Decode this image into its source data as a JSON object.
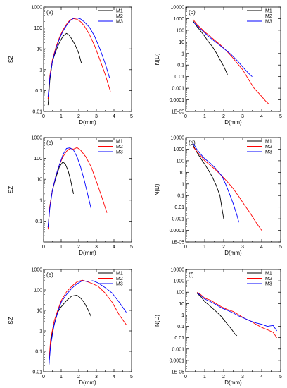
{
  "chart_data": [
    {
      "type": "line",
      "panel": "(a)",
      "xlabel": "D(mm)",
      "ylabel": "SZ",
      "yscale": "log",
      "xlim": [
        0,
        5
      ],
      "ylim_exp": [
        -2,
        3
      ],
      "xticks": [
        "0",
        "1",
        "2",
        "3",
        "4",
        "5"
      ],
      "yticks": [
        "0.01",
        "0.1",
        "1",
        "10",
        "100",
        "1000"
      ],
      "legend_position": "top-right",
      "series": [
        {
          "name": "M1",
          "color": "#000000",
          "x": [
            0.25,
            0.35,
            0.5,
            0.7,
            0.9,
            1.1,
            1.3,
            1.45,
            1.6,
            1.8,
            2.0,
            2.15
          ],
          "y": [
            0.02,
            0.3,
            2.5,
            8,
            20,
            40,
            55,
            45,
            30,
            15,
            6,
            2
          ]
        },
        {
          "name": "M2",
          "color": "#ff0000",
          "x": [
            0.25,
            0.35,
            0.5,
            0.7,
            0.9,
            1.1,
            1.3,
            1.5,
            1.7,
            1.9,
            2.1,
            2.3,
            2.6,
            2.9,
            3.2,
            3.5,
            3.8
          ],
          "y": [
            0.04,
            0.5,
            3,
            12,
            35,
            80,
            150,
            240,
            280,
            260,
            200,
            130,
            50,
            14,
            3,
            0.6,
            0.09
          ]
        },
        {
          "name": "M3",
          "color": "#0000ff",
          "x": [
            0.25,
            0.35,
            0.5,
            0.7,
            0.9,
            1.1,
            1.3,
            1.5,
            1.7,
            1.9,
            2.1,
            2.3,
            2.6,
            2.9,
            3.2,
            3.5,
            3.75
          ],
          "y": [
            0.05,
            0.4,
            2.5,
            10,
            30,
            70,
            130,
            220,
            290,
            300,
            270,
            200,
            110,
            40,
            10,
            2,
            0.4
          ]
        }
      ]
    },
    {
      "type": "line",
      "panel": "(b)",
      "xlabel": "D(mm)",
      "ylabel": "N(D)",
      "yscale": "log",
      "xlim": [
        0,
        5
      ],
      "ylim_exp": [
        -5,
        4
      ],
      "xticks": [
        "0",
        "1",
        "2",
        "3",
        "4",
        "5"
      ],
      "yticks": [
        "1E-05",
        "0.0001",
        "0.001",
        "0.01",
        "0.1",
        "1",
        "10",
        "100",
        "1000",
        "10000"
      ],
      "legend_position": "top-right",
      "series": [
        {
          "name": "M1",
          "color": "#000000",
          "x": [
            0.4,
            0.6,
            0.8,
            1.0,
            1.2,
            1.4,
            1.6,
            1.8,
            2.0,
            2.2
          ],
          "y": [
            600,
            200,
            80,
            30,
            10,
            4,
            1.2,
            0.3,
            0.08,
            0.015
          ]
        },
        {
          "name": "M2",
          "color": "#ff0000",
          "x": [
            0.4,
            0.6,
            0.8,
            1.0,
            1.2,
            1.5,
            1.8,
            2.1,
            2.4,
            2.7,
            3.0,
            3.3,
            3.6,
            3.9,
            4.2,
            4.4
          ],
          "y": [
            800,
            300,
            150,
            70,
            40,
            15,
            6,
            2,
            0.6,
            0.15,
            0.04,
            0.006,
            0.001,
            0.0003,
            8e-05,
            4e-05
          ]
        },
        {
          "name": "M3",
          "color": "#0000ff",
          "x": [
            0.4,
            0.6,
            0.8,
            1.0,
            1.2,
            1.5,
            1.8,
            2.1,
            2.4,
            2.7,
            3.0,
            3.3,
            3.5
          ],
          "y": [
            500,
            250,
            120,
            60,
            30,
            12,
            5,
            2,
            0.8,
            0.25,
            0.07,
            0.02,
            0.01
          ]
        }
      ]
    },
    {
      "type": "line",
      "panel": "(c)",
      "xlabel": "D(mm)",
      "ylabel": "SZ",
      "yscale": "log",
      "xlim": [
        0,
        5
      ],
      "ylim_exp": [
        -2,
        3
      ],
      "xticks": [
        "0",
        "1",
        "2",
        "3",
        "4",
        "5"
      ],
      "yticks": [
        "0.1",
        "1",
        "10",
        "100",
        "1000"
      ],
      "legend_position": "top-right",
      "series": [
        {
          "name": "M1",
          "color": "#000000",
          "x": [
            0.25,
            0.35,
            0.5,
            0.7,
            0.9,
            1.1,
            1.25,
            1.4,
            1.55,
            1.7
          ],
          "y": [
            0.05,
            0.5,
            3,
            12,
            40,
            70,
            50,
            25,
            8,
            2
          ]
        },
        {
          "name": "M2",
          "color": "#ff0000",
          "x": [
            0.25,
            0.35,
            0.5,
            0.7,
            0.9,
            1.1,
            1.3,
            1.5,
            1.7,
            1.9,
            2.1,
            2.4,
            2.7,
            3.0,
            3.3,
            3.6
          ],
          "y": [
            0.04,
            0.5,
            3,
            15,
            50,
            120,
            220,
            300,
            280,
            330,
            250,
            120,
            40,
            8,
            1.5,
            0.25
          ]
        },
        {
          "name": "M3",
          "color": "#0000ff",
          "x": [
            0.25,
            0.35,
            0.5,
            0.7,
            0.9,
            1.1,
            1.3,
            1.5,
            1.7,
            1.9,
            2.1,
            2.3,
            2.5,
            2.7
          ],
          "y": [
            0.05,
            0.4,
            3,
            15,
            50,
            150,
            300,
            320,
            250,
            120,
            40,
            10,
            2,
            0.4
          ]
        }
      ]
    },
    {
      "type": "line",
      "panel": "(d)",
      "xlabel": "D(mm)",
      "ylabel": "N(D)",
      "yscale": "log",
      "xlim": [
        0,
        5
      ],
      "ylim_exp": [
        -5,
        4
      ],
      "xticks": [
        "0",
        "1",
        "2",
        "3",
        "4",
        "5"
      ],
      "yticks": [
        "1E-05",
        "0.0001",
        "0.001",
        "0.01",
        "0.1",
        "1",
        "10",
        "100",
        "1000",
        "10000"
      ],
      "legend_position": "top-right",
      "series": [
        {
          "name": "M1",
          "color": "#000000",
          "x": [
            0.4,
            0.6,
            0.8,
            1.0,
            1.2,
            1.4,
            1.6,
            1.8,
            1.9,
            2.0
          ],
          "y": [
            2000,
            500,
            150,
            50,
            15,
            4,
            0.8,
            0.1,
            0.01,
            0.001
          ]
        },
        {
          "name": "M2",
          "color": "#ff0000",
          "x": [
            0.4,
            0.6,
            0.8,
            1.0,
            1.3,
            1.6,
            1.9,
            2.2,
            2.5,
            2.8,
            3.1,
            3.4,
            3.7,
            4.0
          ],
          "y": [
            1500,
            600,
            250,
            100,
            40,
            15,
            5,
            1.5,
            0.4,
            0.08,
            0.015,
            0.003,
            0.0005,
            0.0001
          ]
        },
        {
          "name": "M3",
          "color": "#0000ff",
          "x": [
            0.4,
            0.6,
            0.8,
            1.0,
            1.3,
            1.6,
            1.9,
            2.1,
            2.3,
            2.5,
            2.7,
            2.8
          ],
          "y": [
            3000,
            900,
            350,
            150,
            60,
            20,
            5,
            1,
            0.15,
            0.02,
            0.002,
            0.0005
          ]
        }
      ]
    },
    {
      "type": "line",
      "panel": "(e)",
      "xlabel": "D(mm)",
      "ylabel": "SZ",
      "yscale": "log",
      "xlim": [
        0,
        5
      ],
      "ylim_exp": [
        -2,
        3
      ],
      "xticks": [
        "0",
        "1",
        "2",
        "3",
        "4",
        "5"
      ],
      "yticks": [
        "0.01",
        "0.1",
        "1",
        "10",
        "100",
        "1000"
      ],
      "legend_position": "top-right",
      "series": [
        {
          "name": "M1",
          "color": "#000000",
          "x": [
            0.3,
            0.4,
            0.6,
            0.8,
            1.0,
            1.3,
            1.6,
            1.9,
            2.1,
            2.3,
            2.5,
            2.7
          ],
          "y": [
            0.02,
            0.3,
            2,
            8,
            15,
            30,
            50,
            55,
            40,
            25,
            12,
            5
          ]
        },
        {
          "name": "M2",
          "color": "#ff0000",
          "x": [
            0.3,
            0.4,
            0.6,
            0.8,
            1.0,
            1.3,
            1.6,
            1.9,
            2.2,
            2.5,
            2.8,
            3.1,
            3.5,
            3.9,
            4.3,
            4.7
          ],
          "y": [
            0.03,
            0.4,
            3,
            10,
            30,
            80,
            150,
            250,
            300,
            250,
            200,
            150,
            70,
            25,
            6,
            2
          ]
        },
        {
          "name": "M3",
          "color": "#0000ff",
          "x": [
            0.3,
            0.4,
            0.6,
            0.8,
            1.0,
            1.3,
            1.6,
            1.9,
            2.2,
            2.5,
            2.8,
            3.1,
            3.5,
            3.9,
            4.3,
            4.7
          ],
          "y": [
            0.02,
            0.2,
            2,
            8,
            25,
            60,
            120,
            200,
            280,
            260,
            280,
            220,
            130,
            70,
            25,
            8
          ]
        }
      ]
    },
    {
      "type": "line",
      "panel": "(f)",
      "xlabel": "D(mm)",
      "ylabel": "N(D)",
      "yscale": "log",
      "xlim": [
        0,
        5
      ],
      "ylim_exp": [
        -5,
        4
      ],
      "xticks": [
        "0",
        "1",
        "2",
        "3",
        "4",
        "5"
      ],
      "yticks": [
        "1E-05",
        "0.0001",
        "0.001",
        "0.01",
        "0.1",
        "1",
        "10",
        "100",
        "1000",
        "10000"
      ],
      "legend_position": "top-right",
      "series": [
        {
          "name": "M1",
          "color": "#000000",
          "x": [
            0.6,
            0.8,
            1.0,
            1.2,
            1.4,
            1.6,
            1.8,
            2.0,
            2.2,
            2.4,
            2.6,
            2.7
          ],
          "y": [
            80,
            40,
            15,
            8,
            4,
            2,
            1,
            0.4,
            0.15,
            0.06,
            0.02,
            0.015
          ]
        },
        {
          "name": "M2",
          "color": "#ff0000",
          "x": [
            0.6,
            0.8,
            1.0,
            1.3,
            1.6,
            1.9,
            2.2,
            2.5,
            2.8,
            3.1,
            3.4,
            3.7,
            4.0,
            4.3,
            4.6,
            4.8
          ],
          "y": [
            100,
            60,
            30,
            20,
            10,
            5,
            3,
            2,
            1,
            0.5,
            0.3,
            0.15,
            0.08,
            0.05,
            0.03,
            0.01
          ]
        },
        {
          "name": "M3",
          "color": "#0000ff",
          "x": [
            0.6,
            0.8,
            1.0,
            1.3,
            1.6,
            1.9,
            2.2,
            2.5,
            2.8,
            3.1,
            3.4,
            3.7,
            4.0,
            4.3,
            4.6,
            4.8
          ],
          "y": [
            90,
            50,
            25,
            15,
            8,
            4,
            2.5,
            1.5,
            0.8,
            0.5,
            0.3,
            0.2,
            0.15,
            0.1,
            0.12,
            0.04
          ]
        }
      ]
    }
  ]
}
